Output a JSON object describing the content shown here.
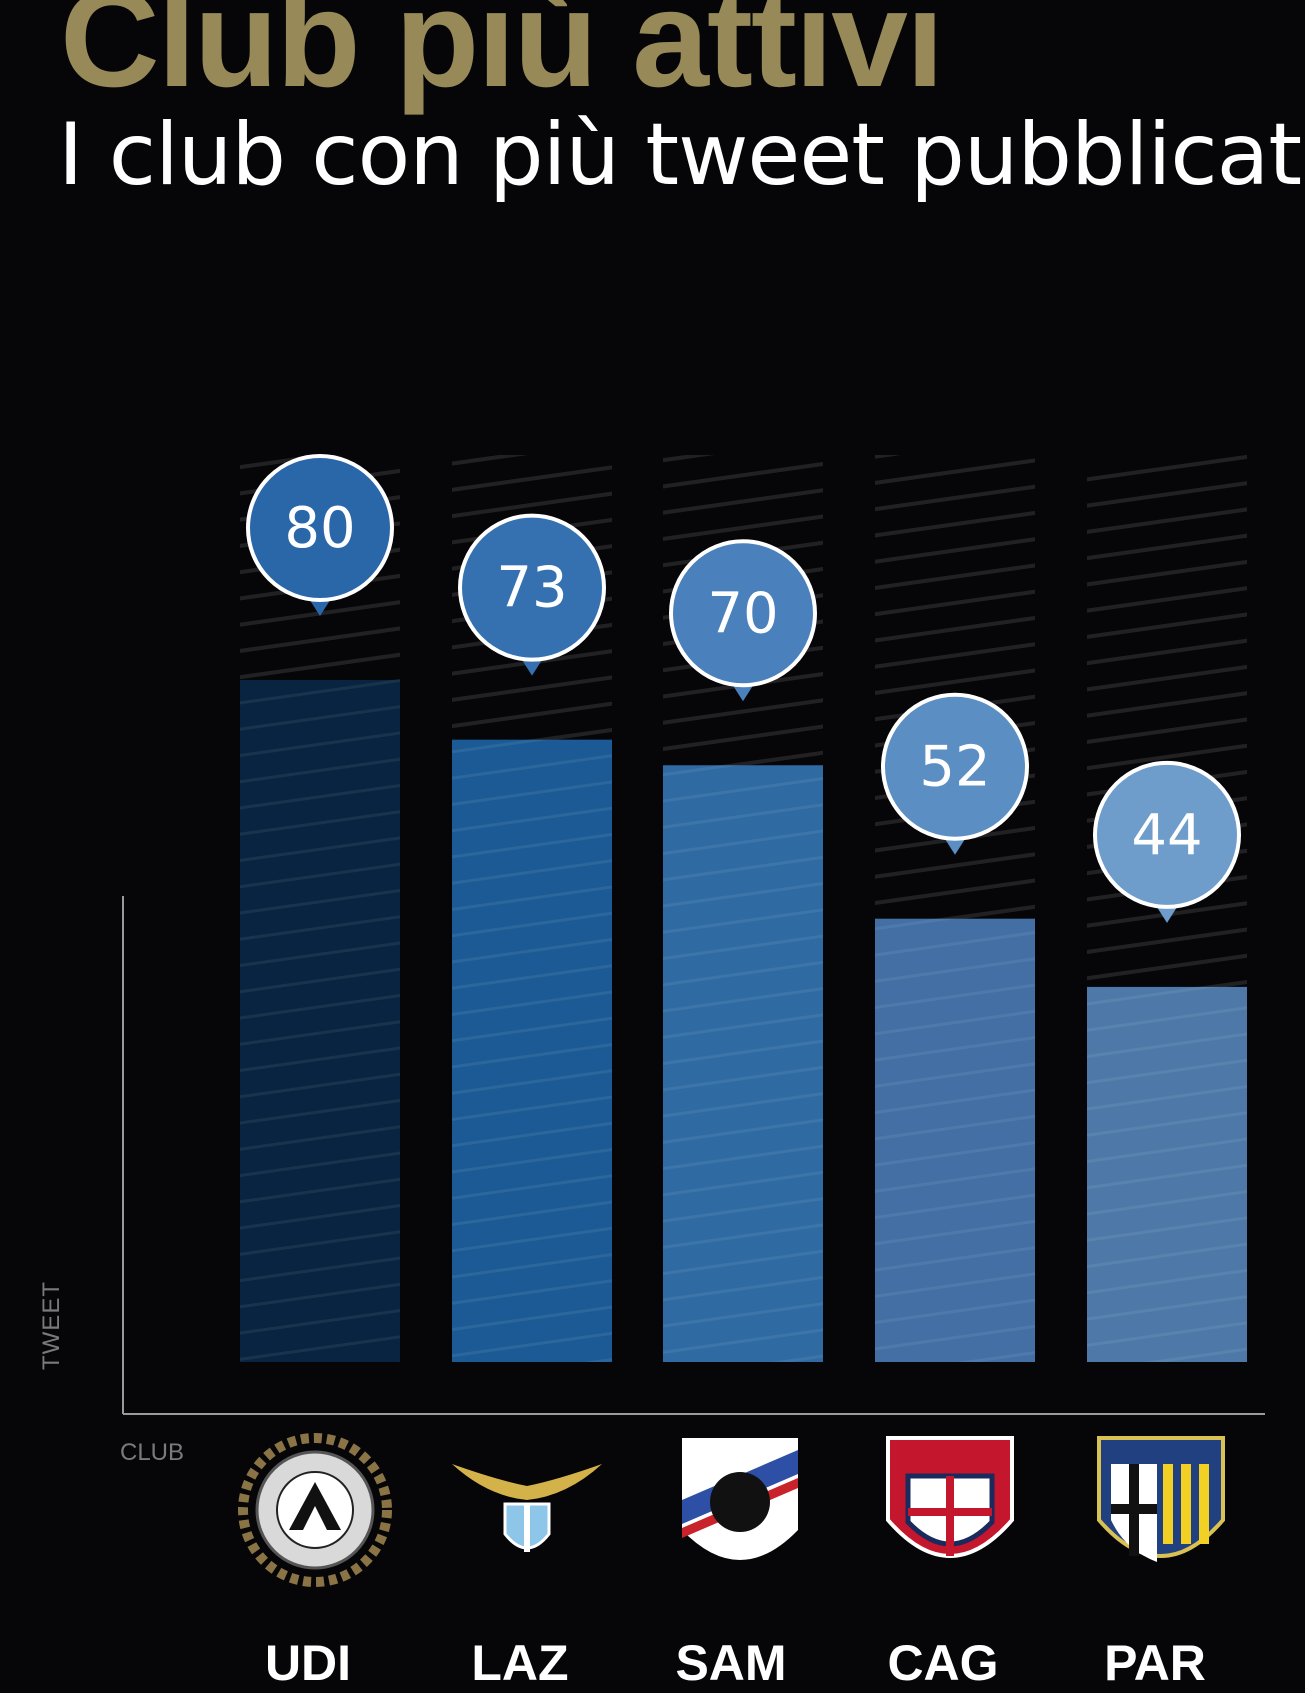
{
  "colors": {
    "background": "#060608",
    "title": "#978a58",
    "subtitle": "#ffffff",
    "bubble_border": "#ffffff"
  },
  "chart_data": {
    "type": "bar",
    "title": "Club più attivi",
    "subtitle": "I club con più tweet pubblicati",
    "xlabel": "CLUB",
    "ylabel": "TWEET",
    "categories": [
      "UDI",
      "LAZ",
      "SAM",
      "CAG",
      "PAR"
    ],
    "values": [
      80,
      73,
      70,
      52,
      44
    ],
    "grid": false,
    "logos": [
      "udinese-logo-icon",
      "lazio-logo-icon",
      "sampdoria-logo-icon",
      "cagliari-logo-icon",
      "parma-logo-icon"
    ],
    "bar_colors": [
      "#082440",
      "#1b5a94",
      "#2f6aa3",
      "#436fa5",
      "#4e78a8"
    ],
    "bubble_colors": [
      "#2a67a8",
      "#3571b0",
      "#4a80bb",
      "#5b8ec3",
      "#6e9ccb"
    ]
  }
}
